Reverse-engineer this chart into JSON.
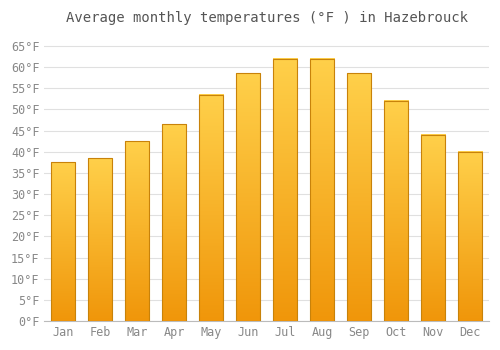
{
  "title": "Average monthly temperatures (°F ) in Hazebrouck",
  "categories": [
    "Jan",
    "Feb",
    "Mar",
    "Apr",
    "May",
    "Jun",
    "Jul",
    "Aug",
    "Sep",
    "Oct",
    "Nov",
    "Dec"
  ],
  "values": [
    37.5,
    38.5,
    42.5,
    46.5,
    53.5,
    58.5,
    62.0,
    62.0,
    58.5,
    52.0,
    44.0,
    40.0
  ],
  "bar_color_top": "#FFD04A",
  "bar_color_bottom": "#F0960A",
  "bar_edge_color": "#C8820A",
  "background_color": "#FFFFFF",
  "plot_bg_color": "#FFFFFF",
  "grid_color": "#E0E0E0",
  "text_color": "#888888",
  "title_color": "#555555",
  "ylim": [
    0,
    68
  ],
  "yticks": [
    0,
    5,
    10,
    15,
    20,
    25,
    30,
    35,
    40,
    45,
    50,
    55,
    60,
    65
  ],
  "ylabel_suffix": "°F",
  "title_fontsize": 10,
  "tick_fontsize": 8.5
}
